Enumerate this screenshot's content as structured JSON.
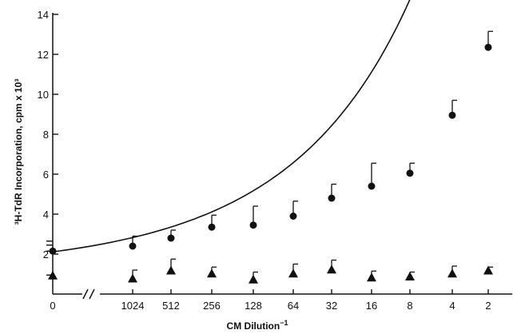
{
  "chart_data": {
    "type": "scatter",
    "title": "",
    "xlabel": "CM Dilution",
    "xlabel_sup": "−1",
    "ylabel": "³H-TdR Incorporation, cpm x 10³",
    "ylim": [
      0,
      14
    ],
    "y_ticks": [
      2,
      4,
      6,
      8,
      10,
      12,
      14
    ],
    "x_axis_break": true,
    "categories": [
      "0",
      "1024",
      "512",
      "256",
      "128",
      "64",
      "32",
      "16",
      "8",
      "4",
      "2"
    ],
    "series": [
      {
        "marker": "circle",
        "values": [
          2.15,
          2.4,
          2.8,
          3.35,
          3.45,
          3.9,
          4.8,
          5.4,
          6.05,
          8.95,
          12.35
        ],
        "error_upper": [
          null,
          0.5,
          0.4,
          0.6,
          0.95,
          0.75,
          0.7,
          1.15,
          0.5,
          0.75,
          0.8
        ],
        "fit_curve": true
      },
      {
        "marker": "triangle",
        "values": [
          0.95,
          0.8,
          1.2,
          1.05,
          0.75,
          1.05,
          1.25,
          0.85,
          0.9,
          1.05,
          1.2
        ],
        "error_upper": [
          null,
          0.4,
          0.55,
          0.3,
          0.35,
          0.45,
          0.45,
          0.3,
          0.2,
          0.35,
          0.15
        ]
      }
    ],
    "y_axis_dashes_at_zero": [
      2.15,
      2.45,
      2.65,
      0.95
    ],
    "grid": false,
    "legend": "none"
  }
}
